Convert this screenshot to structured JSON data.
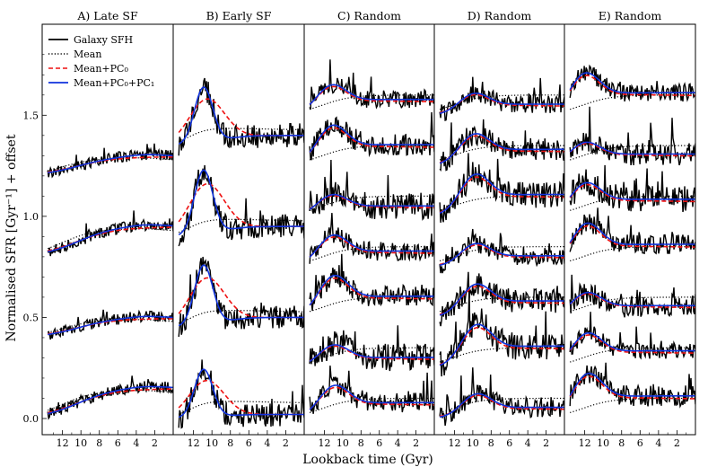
{
  "chart_data": {
    "type": "line",
    "title": "",
    "xlabel": "Lookback time (Gyr)",
    "ylabel": "Normalised SFR [Gyr⁻¹] + offset",
    "xlim": [
      14.2,
      0
    ],
    "ylim": [
      -0.08,
      1.95
    ],
    "x_ticks": [
      12,
      10,
      8,
      6,
      4,
      2
    ],
    "y_ticks": [
      0.0,
      0.5,
      1.0,
      1.5
    ],
    "y_tick_labels": [
      "0.0",
      "0.5",
      "1.0",
      "1.5"
    ],
    "grid": false,
    "legend_position": "top-left",
    "legend": [
      {
        "label": "Galaxy SFH",
        "color": "#000000",
        "style": "solid"
      },
      {
        "label": "Mean",
        "color": "#000000",
        "style": "dotted"
      },
      {
        "label": "Mean+PC₀",
        "color": "#ee1111",
        "style": "dashed"
      },
      {
        "label": "Mean+PC₀+PC₁",
        "color": "#1133dd",
        "style": "solid"
      }
    ],
    "panels": [
      {
        "title": "A) Late SF",
        "kind": "late",
        "offsets": [
          1.2,
          0.8,
          0.4,
          0.0
        ]
      },
      {
        "title": "B) Early SF",
        "kind": "early",
        "offsets": [
          1.35,
          0.9,
          0.45,
          0.0
        ]
      },
      {
        "title": "C) Random",
        "kind": "random",
        "offsets": [
          1.5,
          1.25,
          1.0,
          0.75,
          0.5,
          0.25,
          0.0
        ]
      },
      {
        "title": "D) Random",
        "kind": "random",
        "offsets": [
          1.5,
          1.25,
          1.0,
          0.75,
          0.5,
          0.25,
          0.0
        ]
      },
      {
        "title": "E) Random",
        "kind": "random",
        "offsets": [
          1.5,
          1.25,
          1.0,
          0.75,
          0.5,
          0.25,
          0.0
        ]
      }
    ]
  },
  "colors": {
    "galaxy": "#000000",
    "mean": "#000000",
    "pc0": "#ee1111",
    "pc01": "#1133dd"
  }
}
